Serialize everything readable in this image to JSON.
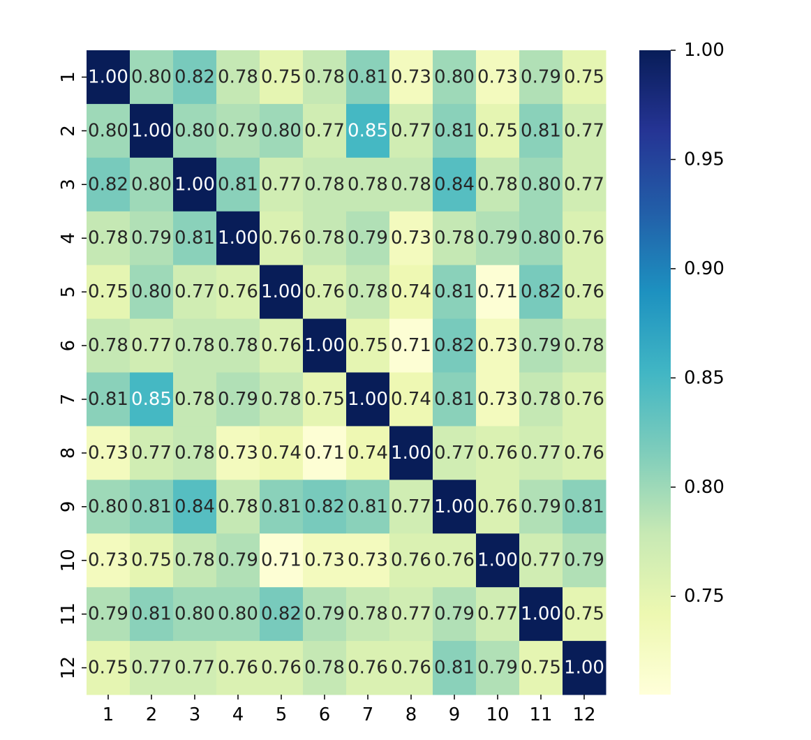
{
  "chart_data": {
    "type": "heatmap",
    "title": "",
    "xlabel": "",
    "ylabel": "",
    "x_categories": [
      "1",
      "2",
      "3",
      "4",
      "5",
      "6",
      "7",
      "8",
      "9",
      "10",
      "11",
      "12"
    ],
    "y_categories": [
      "1",
      "2",
      "3",
      "4",
      "5",
      "6",
      "7",
      "8",
      "9",
      "10",
      "11",
      "12"
    ],
    "values": [
      [
        1.0,
        0.8,
        0.82,
        0.78,
        0.75,
        0.78,
        0.81,
        0.73,
        0.8,
        0.73,
        0.79,
        0.75
      ],
      [
        0.8,
        1.0,
        0.8,
        0.79,
        0.8,
        0.77,
        0.85,
        0.77,
        0.81,
        0.75,
        0.81,
        0.77
      ],
      [
        0.82,
        0.8,
        1.0,
        0.81,
        0.77,
        0.78,
        0.78,
        0.78,
        0.84,
        0.78,
        0.8,
        0.77
      ],
      [
        0.78,
        0.79,
        0.81,
        1.0,
        0.76,
        0.78,
        0.79,
        0.73,
        0.78,
        0.79,
        0.8,
        0.76
      ],
      [
        0.75,
        0.8,
        0.77,
        0.76,
        1.0,
        0.76,
        0.78,
        0.74,
        0.81,
        0.71,
        0.82,
        0.76
      ],
      [
        0.78,
        0.77,
        0.78,
        0.78,
        0.76,
        1.0,
        0.75,
        0.71,
        0.82,
        0.73,
        0.79,
        0.78
      ],
      [
        0.81,
        0.85,
        0.78,
        0.79,
        0.78,
        0.75,
        1.0,
        0.74,
        0.81,
        0.73,
        0.78,
        0.76
      ],
      [
        0.73,
        0.77,
        0.78,
        0.73,
        0.74,
        0.71,
        0.74,
        1.0,
        0.77,
        0.76,
        0.77,
        0.76
      ],
      [
        0.8,
        0.81,
        0.84,
        0.78,
        0.81,
        0.82,
        0.81,
        0.77,
        1.0,
        0.76,
        0.79,
        0.81
      ],
      [
        0.73,
        0.75,
        0.78,
        0.79,
        0.71,
        0.73,
        0.73,
        0.76,
        0.76,
        1.0,
        0.77,
        0.79
      ],
      [
        0.79,
        0.81,
        0.8,
        0.8,
        0.82,
        0.79,
        0.78,
        0.77,
        0.79,
        0.77,
        1.0,
        0.75
      ],
      [
        0.75,
        0.77,
        0.77,
        0.76,
        0.76,
        0.78,
        0.76,
        0.76,
        0.81,
        0.79,
        0.75,
        1.0
      ]
    ],
    "value_format": "0.00",
    "colormap": "YlGnBu",
    "color_range": [
      0.705,
      1.0
    ],
    "colorbar_ticks": [
      "0.75",
      "0.80",
      "0.85",
      "0.90",
      "0.95",
      "1.00"
    ],
    "grid": false,
    "colors": {
      "low": "#ffffd9",
      "high": "#081d58",
      "light_text": "#ffffff",
      "dark_text": "#262626"
    }
  }
}
